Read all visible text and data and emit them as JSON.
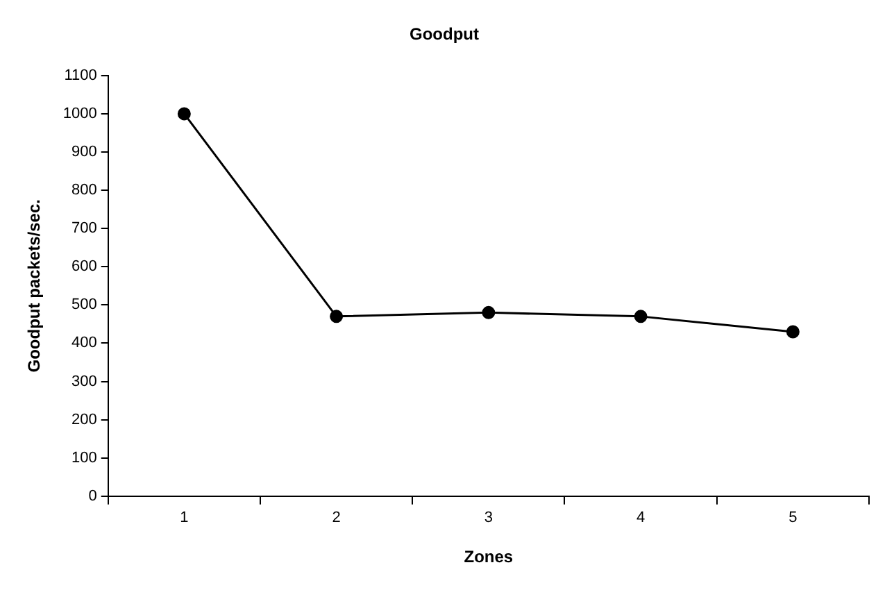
{
  "chart_data": {
    "type": "line",
    "title": "Goodput",
    "xlabel": "Zones",
    "ylabel": "Goodput packets/sec.",
    "categories": [
      "1",
      "2",
      "3",
      "4",
      "5"
    ],
    "series": [
      {
        "color": "#000000",
        "values": [
          1000,
          470,
          480,
          470,
          430
        ]
      }
    ],
    "ylim": [
      0,
      1100
    ],
    "yticks": [
      0,
      100,
      200,
      300,
      400,
      500,
      600,
      700,
      800,
      900,
      1000,
      1100
    ],
    "grid": false,
    "legend": false,
    "marker": "circle",
    "line_style": "solid"
  }
}
